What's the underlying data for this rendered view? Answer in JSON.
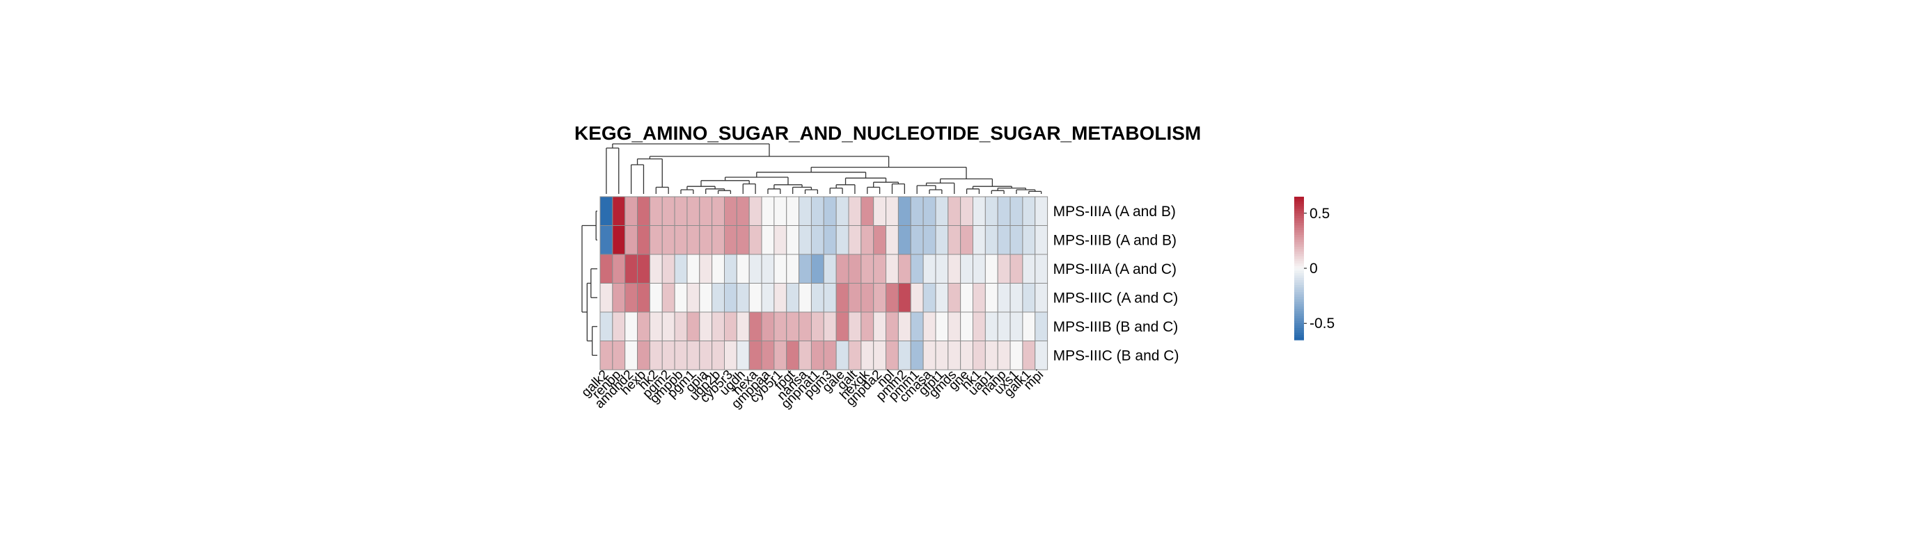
{
  "chart_data": {
    "type": "heatmap",
    "title": "KEGG_AMINO_SUGAR_AND_NUCLEOTIDE_SUGAR_METABOLISM",
    "rows": [
      "MPS-IIIA (A and B)",
      "MPS-IIIB (A and B)",
      "MPS-IIIA (A and C)",
      "MPS-IIIC (A and C)",
      "MPS-IIIB (B and C)",
      "MPS-IIIC (B and C)"
    ],
    "columns": [
      "galk2",
      "renbp",
      "amdhd2",
      "hexb",
      "hk2",
      "pgm2",
      "gmppb",
      "pgm1",
      "gpia",
      "ugp2b",
      "cyb5r3",
      "ugdh",
      "hexa",
      "gmppaa",
      "cyb5r1",
      "fpgt",
      "nansa",
      "gnpnat1",
      "pgm3",
      "gale",
      "galt",
      "hexgk",
      "gnpda2",
      "npl",
      "pmm2",
      "pmm1",
      "cmasa",
      "gfpt1",
      "gmds",
      "gne",
      "hk1",
      "uap1",
      "nanp",
      "uxs1",
      "galk1",
      "mpi"
    ],
    "values": [
      [
        -0.62,
        0.62,
        0.25,
        0.4,
        0.2,
        0.2,
        0.2,
        0.2,
        0.2,
        0.2,
        0.3,
        0.3,
        0.1,
        0.0,
        0.0,
        0.0,
        -0.1,
        -0.15,
        -0.2,
        -0.1,
        0.1,
        0.3,
        0.05,
        0.05,
        -0.35,
        -0.2,
        -0.2,
        -0.1,
        0.15,
        0.1,
        -0.05,
        -0.1,
        -0.15,
        -0.15,
        -0.1,
        -0.05
      ],
      [
        -0.55,
        0.65,
        0.25,
        0.4,
        0.2,
        0.2,
        0.2,
        0.2,
        0.2,
        0.2,
        0.3,
        0.3,
        0.15,
        0.0,
        0.05,
        0.0,
        -0.1,
        -0.15,
        -0.2,
        -0.1,
        0.1,
        0.2,
        0.3,
        0.05,
        -0.35,
        -0.2,
        -0.2,
        -0.1,
        0.15,
        0.2,
        -0.05,
        -0.1,
        -0.15,
        -0.15,
        -0.1,
        -0.05
      ],
      [
        0.4,
        0.3,
        0.5,
        0.5,
        0.05,
        0.1,
        -0.1,
        0.0,
        0.05,
        0.0,
        -0.1,
        0.0,
        -0.05,
        -0.05,
        0.0,
        0.0,
        -0.25,
        -0.35,
        -0.1,
        0.25,
        0.25,
        0.2,
        0.2,
        0.05,
        0.2,
        -0.2,
        -0.05,
        -0.05,
        0.05,
        -0.05,
        -0.05,
        0.0,
        0.1,
        0.15,
        -0.05,
        -0.05
      ],
      [
        0.05,
        0.25,
        0.35,
        0.4,
        0.0,
        0.15,
        0.0,
        0.05,
        0.0,
        -0.1,
        -0.15,
        -0.1,
        0.0,
        -0.05,
        0.05,
        -0.1,
        0.0,
        -0.1,
        -0.1,
        0.35,
        0.25,
        0.25,
        0.2,
        0.35,
        0.5,
        0.05,
        -0.15,
        -0.05,
        0.15,
        0.0,
        0.1,
        0.0,
        -0.05,
        -0.05,
        -0.1,
        -0.05
      ],
      [
        -0.1,
        0.1,
        0.0,
        0.2,
        0.05,
        0.05,
        0.1,
        0.2,
        0.05,
        0.1,
        0.15,
        0.05,
        0.35,
        0.25,
        0.2,
        0.2,
        0.2,
        0.15,
        0.1,
        0.35,
        0.1,
        0.2,
        0.05,
        0.2,
        0.05,
        -0.2,
        0.05,
        0.0,
        0.05,
        0.0,
        0.1,
        -0.05,
        -0.05,
        -0.05,
        0.0,
        -0.1
      ],
      [
        0.2,
        0.2,
        0.0,
        0.25,
        0.1,
        0.1,
        0.1,
        0.1,
        0.1,
        0.1,
        0.05,
        -0.05,
        0.35,
        0.3,
        0.2,
        0.35,
        0.15,
        0.25,
        0.25,
        -0.1,
        0.15,
        0.05,
        0.05,
        0.2,
        -0.1,
        -0.25,
        0.05,
        0.05,
        0.05,
        0.05,
        0.1,
        0.05,
        0.05,
        0.0,
        0.15,
        -0.05
      ]
    ],
    "colorbar": {
      "ticks": [
        0.5,
        0,
        -0.5
      ],
      "tick_labels": [
        "0.5",
        "0",
        "-0.5"
      ],
      "range": [
        -0.65,
        0.65
      ]
    },
    "colors": {
      "high": "#b2182b",
      "mid": "#f7f7f7",
      "low": "#2166ac",
      "grid": "#8c8c8c",
      "tree": "#333333"
    }
  }
}
